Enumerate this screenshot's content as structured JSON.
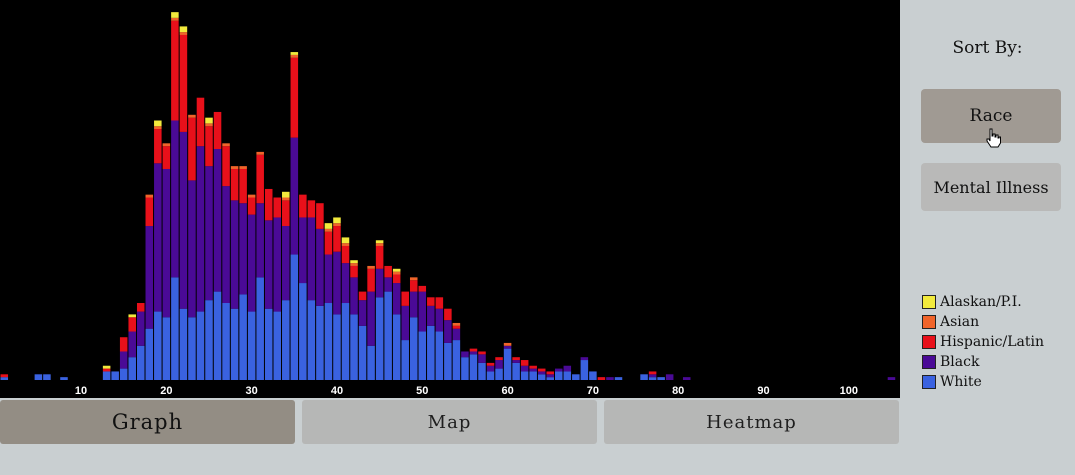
{
  "tabs": [
    {
      "label": "Graph",
      "active": true
    },
    {
      "label": "Map",
      "active": false
    },
    {
      "label": "Heatmap",
      "active": false
    }
  ],
  "sidebar": {
    "title": "Sort By:",
    "buttons": [
      {
        "label": "Race",
        "selected": true
      },
      {
        "label": "Mental Illness",
        "selected": false
      }
    ]
  },
  "legend": [
    {
      "label": "Alaskan/P.I.",
      "color": "#f2ea3c"
    },
    {
      "label": "Asian",
      "color": "#f0642a"
    },
    {
      "label": "Hispanic/Latin",
      "color": "#e8101a"
    },
    {
      "label": "Black",
      "color": "#4a0a96"
    },
    {
      "label": "White",
      "color": "#3a62e0"
    }
  ],
  "chart_data": {
    "type": "bar",
    "stacked": true,
    "x": [
      1,
      2,
      3,
      4,
      5,
      6,
      7,
      8,
      9,
      10,
      11,
      12,
      13,
      14,
      15,
      16,
      17,
      18,
      19,
      20,
      21,
      22,
      23,
      24,
      25,
      26,
      27,
      28,
      29,
      30,
      31,
      32,
      33,
      34,
      35,
      36,
      37,
      38,
      39,
      40,
      41,
      42,
      43,
      44,
      45,
      46,
      47,
      48,
      49,
      50,
      51,
      52,
      53,
      54,
      55,
      56,
      57,
      58,
      59,
      60,
      61,
      62,
      63,
      64,
      65,
      66,
      67,
      68,
      69,
      70,
      71,
      72,
      73,
      74,
      75,
      76,
      77,
      78,
      79,
      80,
      81,
      82,
      83,
      84,
      85,
      86,
      87,
      88,
      89,
      90,
      91,
      92,
      93,
      94,
      95,
      96,
      97,
      98,
      99,
      100,
      101,
      102,
      103,
      104,
      105
    ],
    "xticks": [
      10,
      20,
      30,
      40,
      50,
      60,
      70,
      80,
      90,
      100
    ],
    "xlim": [
      0.5,
      106
    ],
    "ylim": [
      0,
      128
    ],
    "series": [
      {
        "name": "White",
        "color": "#3a62e0",
        "values": [
          1,
          0,
          0,
          0,
          2,
          2,
          0,
          1,
          0,
          0,
          0,
          0,
          3,
          3,
          4,
          8,
          12,
          18,
          24,
          22,
          36,
          25,
          22,
          24,
          28,
          31,
          27,
          25,
          30,
          24,
          36,
          25,
          24,
          28,
          44,
          34,
          28,
          26,
          27,
          23,
          27,
          23,
          19,
          12,
          29,
          31,
          23,
          14,
          22,
          17,
          19,
          17,
          13,
          14,
          8,
          9,
          6,
          3,
          4,
          11,
          6,
          3,
          3,
          2,
          1,
          3,
          3,
          2,
          7,
          3,
          0,
          0,
          1,
          0,
          0,
          2,
          1,
          1,
          0,
          0,
          0,
          0,
          0,
          0,
          0,
          0,
          0,
          0,
          0,
          0,
          0,
          0,
          0,
          0,
          0,
          0,
          0,
          0,
          0,
          0,
          0,
          0,
          0,
          0,
          0
        ]
      },
      {
        "name": "Black",
        "color": "#4a0a96",
        "values": [
          0,
          0,
          0,
          0,
          0,
          0,
          0,
          0,
          0,
          0,
          0,
          0,
          0,
          0,
          6,
          9,
          12,
          36,
          52,
          52,
          55,
          62,
          48,
          58,
          47,
          50,
          41,
          38,
          32,
          34,
          26,
          31,
          33,
          26,
          41,
          23,
          29,
          27,
          17,
          22,
          14,
          13,
          9,
          19,
          10,
          5,
          11,
          12,
          9,
          14,
          7,
          8,
          8,
          4,
          2,
          1,
          3,
          2,
          3,
          1,
          1,
          2,
          1,
          1,
          1,
          1,
          2,
          0,
          1,
          0,
          0,
          1,
          0,
          0,
          0,
          0,
          1,
          0,
          2,
          0,
          1,
          0,
          0,
          0,
          0,
          0,
          0,
          0,
          0,
          0,
          0,
          0,
          0,
          0,
          0,
          0,
          0,
          0,
          0,
          0,
          0,
          0,
          0,
          0,
          1
        ]
      },
      {
        "name": "Hispanic/Latin",
        "color": "#e8101a",
        "values": [
          1,
          0,
          0,
          0,
          0,
          0,
          0,
          0,
          0,
          0,
          0,
          0,
          1,
          0,
          5,
          5,
          3,
          10,
          12,
          8,
          35,
          34,
          22,
          17,
          14,
          13,
          14,
          11,
          12,
          6,
          17,
          11,
          7,
          9,
          28,
          8,
          6,
          9,
          8,
          9,
          6,
          4,
          3,
          8,
          8,
          4,
          3,
          5,
          4,
          2,
          3,
          4,
          4,
          1,
          0,
          1,
          1,
          1,
          1,
          0,
          1,
          2,
          1,
          1,
          1,
          0,
          0,
          0,
          0,
          0,
          1,
          0,
          0,
          0,
          0,
          0,
          1,
          0,
          0,
          0,
          0,
          0,
          0,
          0,
          0,
          0,
          0,
          0,
          0,
          0,
          0,
          0,
          0,
          0,
          0,
          0,
          0,
          0,
          0,
          0,
          0,
          0,
          0,
          0,
          0
        ]
      },
      {
        "name": "Asian",
        "color": "#f0642a",
        "values": [
          0,
          0,
          0,
          0,
          0,
          0,
          0,
          0,
          0,
          0,
          0,
          0,
          0,
          0,
          0,
          0,
          0,
          1,
          1,
          1,
          1,
          1,
          1,
          0,
          1,
          0,
          1,
          1,
          1,
          1,
          1,
          0,
          0,
          1,
          1,
          0,
          0,
          0,
          1,
          1,
          1,
          1,
          0,
          1,
          1,
          0,
          1,
          0,
          1,
          0,
          0,
          0,
          0,
          1,
          0,
          0,
          0,
          0,
          0,
          1,
          0,
          0,
          0,
          0,
          0,
          0,
          0,
          0,
          0,
          0,
          0,
          0,
          0,
          0,
          0,
          0,
          0,
          0,
          0,
          0,
          0,
          0,
          0,
          0,
          0,
          0,
          0,
          0,
          0,
          0,
          0,
          0,
          0,
          0,
          0,
          0,
          0,
          0,
          0,
          0,
          0,
          0,
          0,
          0,
          0
        ]
      },
      {
        "name": "Alaskan/P.I.",
        "color": "#f2ea3c",
        "values": [
          0,
          0,
          0,
          0,
          0,
          0,
          0,
          0,
          0,
          0,
          0,
          0,
          1,
          0,
          0,
          1,
          0,
          0,
          2,
          0,
          2,
          2,
          0,
          0,
          2,
          0,
          0,
          0,
          0,
          0,
          0,
          0,
          0,
          2,
          1,
          0,
          0,
          0,
          2,
          2,
          2,
          1,
          0,
          0,
          1,
          0,
          1,
          0,
          0,
          0,
          0,
          0,
          0,
          0,
          0,
          0,
          0,
          0,
          0,
          0,
          0,
          0,
          0,
          0,
          0,
          0,
          0,
          0,
          0,
          0,
          0,
          0,
          0,
          0,
          0,
          0,
          0,
          0,
          0,
          0,
          0,
          0,
          0,
          0,
          0,
          0,
          0,
          0,
          0,
          0,
          0,
          0,
          0,
          0,
          0,
          0,
          0,
          0,
          0,
          0,
          0,
          0,
          0,
          0,
          0
        ]
      }
    ]
  }
}
